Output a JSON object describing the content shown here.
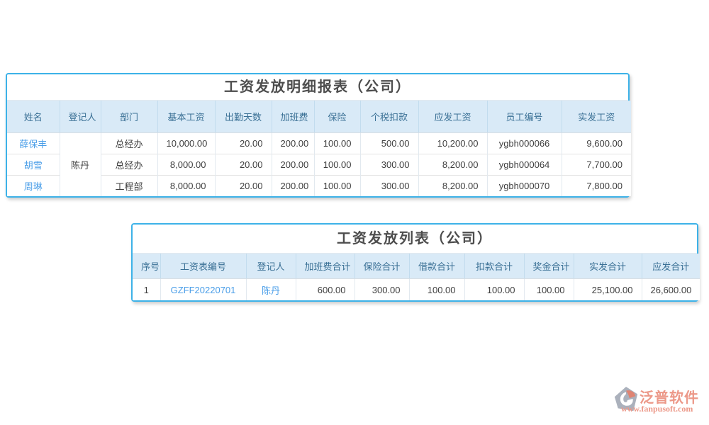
{
  "colors": {
    "table_border": "#3db2e8",
    "header_bg": "#d9eaf7",
    "header_text": "#3a7095",
    "body_text": "#3f3f3f",
    "link": "#4a9ee8",
    "title_text": "#4d4d4d",
    "logo_red": "#e8826f",
    "logo_gray": "#99a0ae"
  },
  "report_table": {
    "title": "工资发放明细报表（公司）",
    "columns": [
      {
        "label": "姓名",
        "align": "center"
      },
      {
        "label": "登记人",
        "align": "center"
      },
      {
        "label": "部门",
        "align": "center"
      },
      {
        "label": "基本工资",
        "align": "center"
      },
      {
        "label": "出勤天数",
        "align": "center"
      },
      {
        "label": "加班费",
        "align": "center"
      },
      {
        "label": "保险",
        "align": "center"
      },
      {
        "label": "个税扣款",
        "align": "center"
      },
      {
        "label": "应发工资",
        "align": "center"
      },
      {
        "label": "员工编号",
        "align": "center"
      },
      {
        "label": "实发工资",
        "align": "center"
      }
    ],
    "cell_aligns": [
      "center",
      "center",
      "center",
      "right",
      "right",
      "right",
      "right",
      "right",
      "right",
      "center",
      "right"
    ],
    "rows": [
      [
        {
          "text": "薛保丰",
          "link": true
        },
        {
          "text": "陈丹",
          "rowspan": 3
        },
        {
          "text": "总经办"
        },
        {
          "text": "10,000.00"
        },
        {
          "text": "20.00"
        },
        {
          "text": "200.00"
        },
        {
          "text": "100.00"
        },
        {
          "text": "500.00"
        },
        {
          "text": "10,200.00"
        },
        {
          "text": "ygbh000066"
        },
        {
          "text": "9,600.00"
        }
      ],
      [
        {
          "text": "胡雪",
          "link": true
        },
        {
          "text": "总经办"
        },
        {
          "text": "8,000.00"
        },
        {
          "text": "20.00"
        },
        {
          "text": "200.00"
        },
        {
          "text": "100.00"
        },
        {
          "text": "300.00"
        },
        {
          "text": "8,200.00"
        },
        {
          "text": "ygbh000064"
        },
        {
          "text": "7,700.00"
        }
      ],
      [
        {
          "text": "周琳",
          "link": true
        },
        {
          "text": "工程部"
        },
        {
          "text": "8,000.00"
        },
        {
          "text": "20.00"
        },
        {
          "text": "200.00"
        },
        {
          "text": "100.00"
        },
        {
          "text": "300.00"
        },
        {
          "text": "8,200.00"
        },
        {
          "text": "ygbh000070"
        },
        {
          "text": "7,800.00"
        }
      ]
    ]
  },
  "list_table": {
    "title": "工资发放列表（公司）",
    "columns": [
      {
        "label": "序号",
        "align": "center"
      },
      {
        "label": "工资表编号",
        "align": "center"
      },
      {
        "label": "登记人",
        "align": "center"
      },
      {
        "label": "加班费合计",
        "align": "center"
      },
      {
        "label": "保险合计",
        "align": "center"
      },
      {
        "label": "借款合计",
        "align": "center"
      },
      {
        "label": "扣款合计",
        "align": "center"
      },
      {
        "label": "奖金合计",
        "align": "center"
      },
      {
        "label": "实发合计",
        "align": "center"
      },
      {
        "label": "应发合计",
        "align": "center"
      }
    ],
    "cell_aligns": [
      "center",
      "center",
      "center",
      "right",
      "right",
      "right",
      "right",
      "right",
      "right",
      "right"
    ],
    "rows": [
      [
        {
          "text": "1"
        },
        {
          "text": "GZFF20220701",
          "link": true
        },
        {
          "text": "陈丹",
          "link": true
        },
        {
          "text": "600.00"
        },
        {
          "text": "300.00"
        },
        {
          "text": "100.00"
        },
        {
          "text": "100.00"
        },
        {
          "text": "100.00"
        },
        {
          "text": "25,100.00"
        },
        {
          "text": "26,600.00"
        }
      ]
    ]
  },
  "footer": {
    "brand": "泛普软件",
    "url": "www.fanpusoft.com"
  }
}
